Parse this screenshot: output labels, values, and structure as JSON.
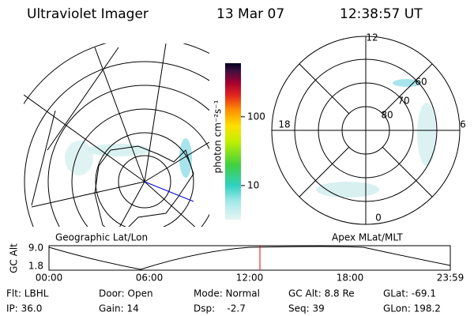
{
  "header": {
    "instrument": "Ultraviolet Imager",
    "date": "13 Mar 07",
    "time": "12:38:57 UT"
  },
  "colorbar": {
    "label": "photon cm⁻²s⁻¹",
    "scale": "log",
    "range": [
      3.2,
      600
    ],
    "ticks": [
      100,
      10
    ]
  },
  "left_panel": {
    "label": "Geographic Lat/Lon"
  },
  "right_panel": {
    "label": "Apex MLat/MLT",
    "mlt_labels": [
      "12",
      "18",
      "6",
      "0"
    ],
    "mlat_labels": [
      "60",
      "70",
      "80"
    ]
  },
  "altitude_plot": {
    "axis_label": "GC Alt",
    "yticks": [
      "9.0",
      "1.8"
    ],
    "xticks": [
      "00:00",
      "06:00",
      "12:00",
      "18:00",
      "23:59"
    ]
  },
  "footer": {
    "rows": [
      [
        "Flt: LBHL",
        "Door: Open",
        "Mode: Normal",
        "GC Alt: 8.8 Re",
        "GLat: -69.1"
      ],
      [
        "IP: 36.0",
        "Gain: 14",
        "Dsp:    -2.7",
        "Seq: 39",
        "GLon: 198.2"
      ]
    ]
  }
}
